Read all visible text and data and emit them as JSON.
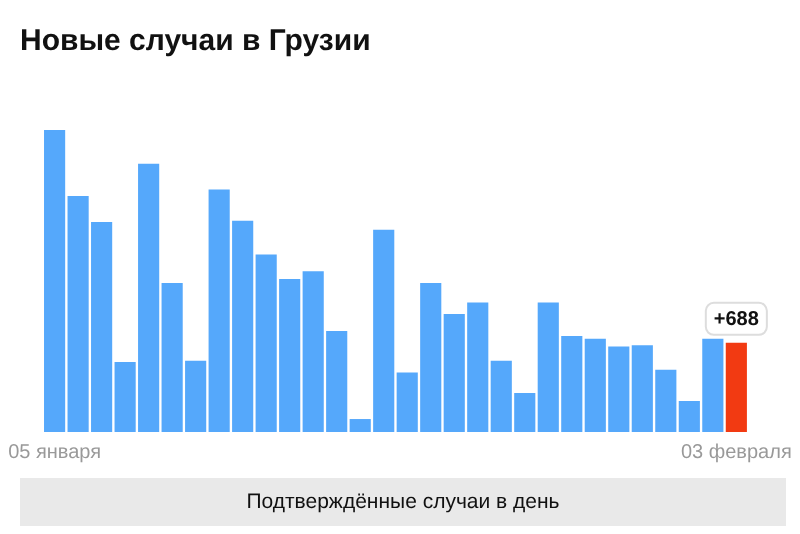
{
  "chart_data": {
    "type": "bar",
    "title": "Новые случаи в Грузии",
    "categories": [
      "05 января",
      null,
      null,
      null,
      null,
      null,
      null,
      null,
      null,
      null,
      null,
      null,
      null,
      null,
      null,
      null,
      null,
      null,
      null,
      null,
      null,
      null,
      null,
      null,
      null,
      null,
      null,
      null,
      null,
      "03 февраля"
    ],
    "values": [
      2330,
      1820,
      1620,
      540,
      2070,
      1150,
      550,
      1870,
      1630,
      1370,
      1180,
      1240,
      780,
      100,
      1560,
      460,
      1150,
      910,
      1000,
      550,
      300,
      1000,
      740,
      720,
      660,
      670,
      480,
      240,
      720,
      688
    ],
    "colors": [
      "#55a8fb",
      "#55a8fb",
      "#55a8fb",
      "#55a8fb",
      "#55a8fb",
      "#55a8fb",
      "#55a8fb",
      "#55a8fb",
      "#55a8fb",
      "#55a8fb",
      "#55a8fb",
      "#55a8fb",
      "#55a8fb",
      "#55a8fb",
      "#55a8fb",
      "#55a8fb",
      "#55a8fb",
      "#55a8fb",
      "#55a8fb",
      "#55a8fb",
      "#55a8fb",
      "#55a8fb",
      "#55a8fb",
      "#55a8fb",
      "#55a8fb",
      "#55a8fb",
      "#55a8fb",
      "#55a8fb",
      "#55a8fb",
      "#f23a12"
    ],
    "value_labels": [
      null,
      null,
      null,
      null,
      null,
      null,
      null,
      null,
      null,
      null,
      null,
      null,
      null,
      null,
      null,
      null,
      null,
      null,
      null,
      null,
      null,
      null,
      null,
      null,
      null,
      null,
      null,
      null,
      null,
      "+688"
    ],
    "grid": false,
    "legend": false,
    "annotations": [
      "Подтверждённые случаи в день"
    ]
  }
}
